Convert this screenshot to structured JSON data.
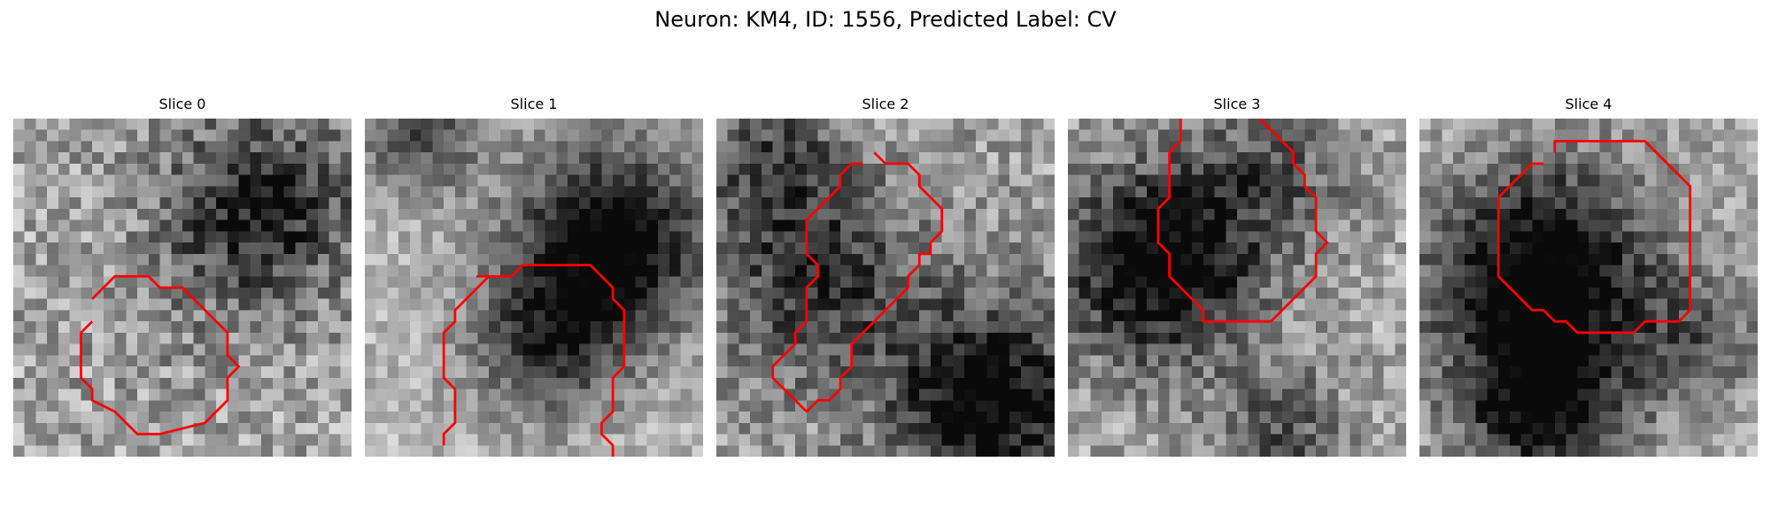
{
  "figure": {
    "title": "Neuron: KM4, ID: 1556, Predicted Label: CV"
  },
  "panels": [
    {
      "label": "Slice 0",
      "dark_regions": [
        {
          "x": 22,
          "y": 8,
          "r": 6,
          "k": 0.55
        },
        {
          "x": 14,
          "y": 18,
          "r": 7,
          "k": 0.05
        }
      ],
      "base": 0.65,
      "noise": 0.22,
      "contour": [
        [
          7,
          16
        ],
        [
          9,
          14
        ],
        [
          12,
          14
        ],
        [
          13,
          15
        ],
        [
          15,
          15
        ],
        [
          17,
          17
        ],
        [
          18,
          18
        ],
        [
          19,
          19
        ],
        [
          19,
          21
        ],
        [
          20,
          22
        ],
        [
          19,
          23
        ],
        [
          19,
          25
        ],
        [
          17,
          27
        ],
        [
          13,
          28
        ],
        [
          11,
          28
        ],
        [
          10,
          27
        ],
        [
          9,
          26
        ],
        [
          7,
          25
        ],
        [
          7,
          24
        ],
        [
          6,
          23
        ],
        [
          6,
          19
        ],
        [
          7,
          18
        ]
      ]
    },
    {
      "label": "Slice 1",
      "dark_regions": [
        {
          "x": 22,
          "y": 11,
          "r": 6,
          "k": 0.8
        },
        {
          "x": 5,
          "y": 1,
          "r": 4,
          "k": 0.45
        },
        {
          "x": 16,
          "y": 20,
          "r": 5,
          "k": 0.45
        }
      ],
      "base": 0.72,
      "noise": 0.15,
      "contour": [
        [
          7,
          29
        ],
        [
          7,
          28
        ],
        [
          8,
          27
        ],
        [
          8,
          24
        ],
        [
          7,
          23
        ],
        [
          7,
          19
        ],
        [
          8,
          18
        ],
        [
          8,
          17
        ],
        [
          10,
          15
        ],
        [
          11,
          14
        ],
        [
          10,
          14
        ],
        [
          13,
          14
        ],
        [
          14,
          13
        ],
        [
          20,
          13
        ],
        [
          22,
          15
        ],
        [
          22,
          16
        ],
        [
          23,
          17
        ],
        [
          23,
          22
        ],
        [
          22,
          23
        ],
        [
          22,
          26
        ],
        [
          21,
          27
        ],
        [
          21,
          28
        ],
        [
          22,
          29
        ],
        [
          22,
          30
        ]
      ]
    },
    {
      "label": "Slice 2",
      "dark_regions": [
        {
          "x": 24,
          "y": 25,
          "r": 6,
          "k": 0.7
        },
        {
          "x": 9,
          "y": 14,
          "r": 6,
          "k": 0.45
        },
        {
          "x": 5,
          "y": 4,
          "r": 4,
          "k": 0.35
        }
      ],
      "base": 0.62,
      "noise": 0.2,
      "contour": [
        [
          14,
          3
        ],
        [
          15,
          4
        ],
        [
          17,
          4
        ],
        [
          18,
          5
        ],
        [
          18,
          6
        ],
        [
          19,
          7
        ],
        [
          20,
          8
        ],
        [
          20,
          10
        ],
        [
          19,
          11
        ],
        [
          19,
          12
        ],
        [
          18,
          12
        ],
        [
          18,
          13
        ],
        [
          17,
          14
        ],
        [
          17,
          15
        ],
        [
          16,
          16
        ],
        [
          15,
          17
        ],
        [
          14,
          18
        ],
        [
          13,
          19
        ],
        [
          12,
          20
        ],
        [
          12,
          22
        ],
        [
          11,
          23
        ],
        [
          11,
          24
        ],
        [
          10,
          25
        ],
        [
          9,
          25
        ],
        [
          8,
          26
        ],
        [
          7,
          25
        ],
        [
          6,
          24
        ],
        [
          5,
          23
        ],
        [
          5,
          22
        ],
        [
          6,
          21
        ],
        [
          7,
          20
        ],
        [
          7,
          19
        ],
        [
          8,
          18
        ],
        [
          8,
          16
        ],
        [
          8,
          15
        ],
        [
          9,
          14
        ],
        [
          9,
          13
        ],
        [
          8,
          12
        ],
        [
          8,
          9
        ],
        [
          9,
          8
        ],
        [
          10,
          7
        ],
        [
          11,
          6
        ],
        [
          11,
          5
        ],
        [
          12,
          4
        ],
        [
          13,
          4
        ]
      ]
    },
    {
      "label": "Slice 3",
      "dark_regions": [
        {
          "x": 8,
          "y": 13,
          "r": 6,
          "k": 0.75
        },
        {
          "x": 19,
          "y": 28,
          "r": 4,
          "k": 0.35
        },
        {
          "x": 18,
          "y": 5,
          "r": 5,
          "k": 0.3
        }
      ],
      "base": 0.66,
      "noise": 0.2,
      "contour": [
        [
          10,
          0
        ],
        [
          10,
          2
        ],
        [
          9,
          3
        ],
        [
          9,
          7
        ],
        [
          8,
          8
        ],
        [
          8,
          11
        ],
        [
          9,
          12
        ],
        [
          9,
          14
        ],
        [
          10,
          15
        ],
        [
          11,
          16
        ],
        [
          12,
          17
        ],
        [
          12,
          18
        ],
        [
          18,
          18
        ],
        [
          19,
          17
        ],
        [
          20,
          16
        ],
        [
          21,
          15
        ],
        [
          22,
          14
        ],
        [
          22,
          12
        ],
        [
          23,
          11
        ],
        [
          22,
          10
        ],
        [
          22,
          7
        ],
        [
          21,
          6
        ],
        [
          21,
          5
        ],
        [
          20,
          4
        ],
        [
          20,
          3
        ],
        [
          19,
          2
        ],
        [
          18,
          1
        ],
        [
          17,
          0
        ]
      ]
    },
    {
      "label": "Slice 4",
      "dark_regions": [
        {
          "x": 11,
          "y": 14,
          "r": 7,
          "k": 0.8
        },
        {
          "x": 11,
          "y": 26,
          "r": 5,
          "k": 0.6
        },
        {
          "x": 25,
          "y": 20,
          "r": 4,
          "k": 0.3
        }
      ],
      "base": 0.68,
      "noise": 0.18,
      "contour": [
        [
          12,
          3
        ],
        [
          12,
          2
        ],
        [
          20,
          2
        ],
        [
          24,
          6
        ],
        [
          24,
          17
        ],
        [
          23,
          18
        ],
        [
          20,
          18
        ],
        [
          19,
          19
        ],
        [
          14,
          19
        ],
        [
          13,
          18
        ],
        [
          12,
          18
        ],
        [
          11,
          17
        ],
        [
          10,
          17
        ],
        [
          9,
          16
        ],
        [
          8,
          15
        ],
        [
          7,
          14
        ],
        [
          7,
          7
        ],
        [
          10,
          4
        ],
        [
          11,
          4
        ]
      ]
    }
  ],
  "colors": {
    "contour": "#ff0000",
    "background": "#ffffff"
  }
}
